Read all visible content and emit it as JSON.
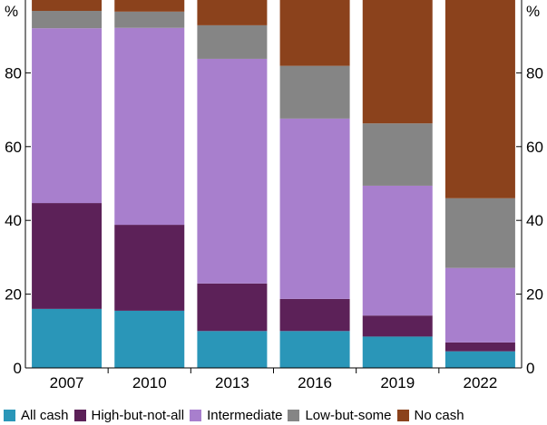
{
  "chart_data": {
    "type": "bar",
    "stacked": true,
    "title": "",
    "xlabel": "",
    "ylabel": "%",
    "ylim": [
      0,
      100
    ],
    "yticks": [
      0,
      20,
      40,
      60,
      80
    ],
    "grid": false,
    "legend_position": "bottom",
    "categories": [
      "2007",
      "2010",
      "2013",
      "2016",
      "2019",
      "2022"
    ],
    "series": [
      {
        "name": "All cash",
        "color": "#2a96b8",
        "values": [
          16,
          15.5,
          10,
          10,
          8.5,
          4.5
        ]
      },
      {
        "name": "High-but-not-all",
        "color": "#5c2158",
        "values": [
          28.7,
          23.3,
          12.9,
          8.7,
          5.7,
          2.4
        ]
      },
      {
        "name": "Intermediate",
        "color": "#a87fcd",
        "values": [
          47.4,
          53.4,
          60.9,
          48.9,
          35.2,
          20.2
        ]
      },
      {
        "name": "Low-but-some",
        "color": "#858585",
        "values": [
          4.7,
          4.4,
          9.1,
          14.3,
          16.9,
          18.9
        ]
      },
      {
        "name": "No cash",
        "color": "#8b421c",
        "values": [
          3.2,
          3.4,
          7.1,
          18.1,
          33.7,
          54
        ]
      }
    ]
  }
}
